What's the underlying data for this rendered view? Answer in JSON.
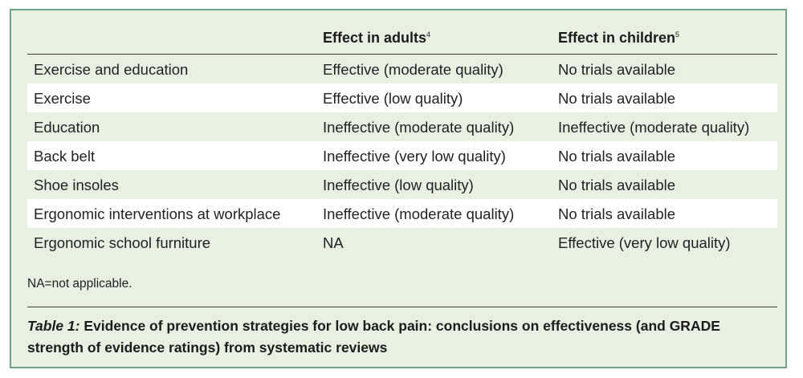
{
  "table": {
    "headers": {
      "col1": "",
      "col2": "Effect in adults",
      "col2_ref": "4",
      "col3": "Effect in children",
      "col3_ref": "5"
    },
    "rows": [
      {
        "strategy": "Exercise and education",
        "adults": "Effective (moderate quality)",
        "children": "No trials available"
      },
      {
        "strategy": "Exercise",
        "adults": "Effective (low quality)",
        "children": "No trials available"
      },
      {
        "strategy": "Education",
        "adults": "Ineffective (moderate quality)",
        "children": "Ineffective (moderate quality)"
      },
      {
        "strategy": "Back belt",
        "adults": "Ineffective (very low quality)",
        "children": "No trials available"
      },
      {
        "strategy": "Shoe insoles",
        "adults": "Ineffective (low quality)",
        "children": "No trials available"
      },
      {
        "strategy": "Ergonomic interventions at workplace",
        "adults": "Ineffective (moderate quality)",
        "children": "No trials available"
      },
      {
        "strategy": "Ergonomic school furniture",
        "adults": "NA",
        "children": "Effective (very low quality)"
      }
    ],
    "footnote": "NA=not applicable."
  },
  "caption": {
    "label": "Table 1:",
    "text": " Evidence of prevention strategies for low back pain: conclusions on effectiveness (and GRADE strength of evidence ratings) from systematic reviews"
  },
  "colors": {
    "border": "#6fa488",
    "background": "#e8f0e2",
    "alt_row": "#ffffff"
  }
}
